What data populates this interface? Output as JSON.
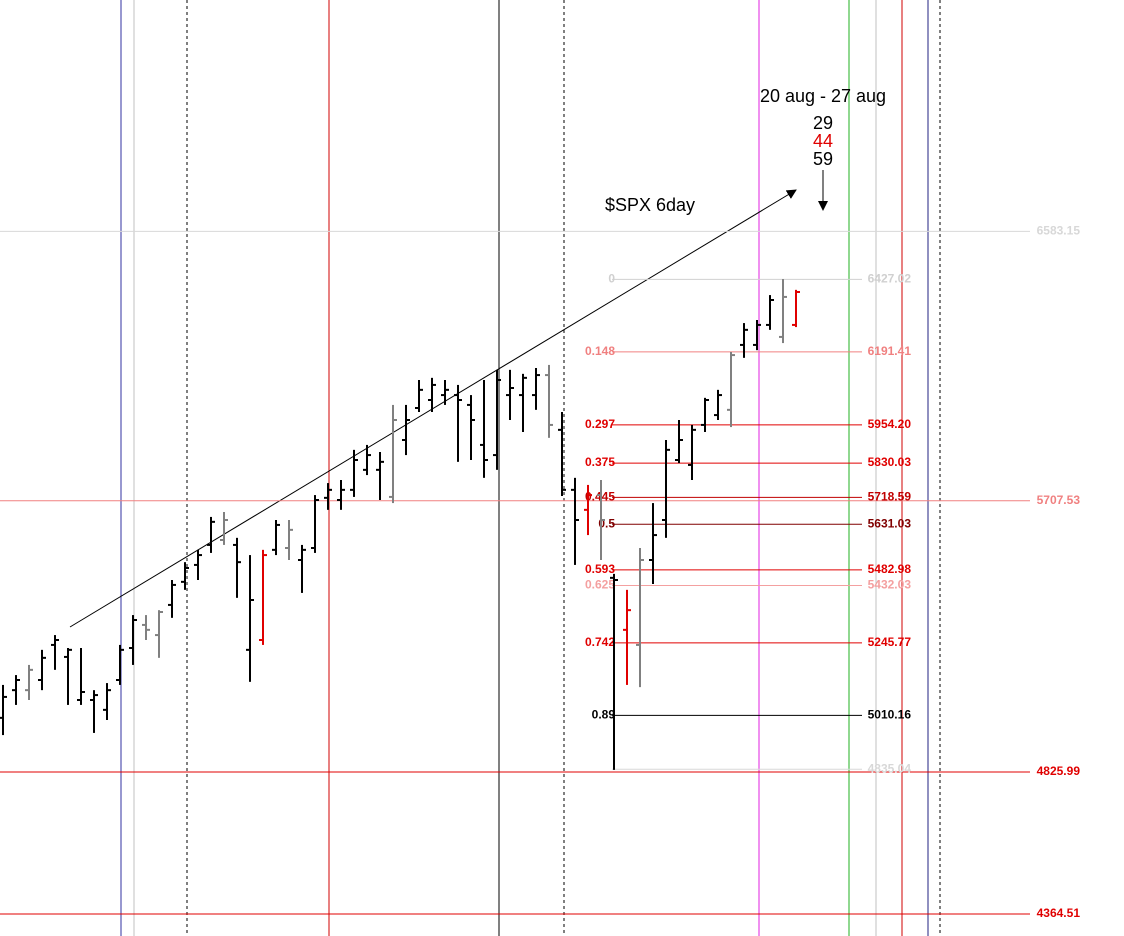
{
  "chart_data": {
    "type": "ohlc",
    "title": "$SPX 6day",
    "annotations": {
      "range": "20 aug - 27 aug",
      "counts": [
        {
          "value": 29,
          "color": "#000000"
        },
        {
          "value": 44,
          "color": "#e00000"
        },
        {
          "value": 59,
          "color": "#000000"
        }
      ]
    },
    "ylim": [
      4293,
      7335
    ],
    "open": [
      5002,
      5092,
      5092,
      5125,
      5239,
      5200,
      5060,
      5060,
      5028,
      5125,
      5229,
      5304,
      5271,
      5369,
      5444,
      5499,
      5564,
      5580,
      5564,
      5223,
      5255,
      5548,
      5554,
      5515,
      5554,
      5717,
      5710,
      5743,
      5808,
      5808,
      5720,
      5905,
      6009,
      6035,
      6051,
      6051,
      6019,
      5889,
      5856,
      6051,
      6051,
      6051,
      6116,
      5938,
      5743,
      5678,
      5726,
      5457,
      5288,
      5239,
      5515,
      5645,
      5840,
      5824,
      5954,
      5986,
      6003,
      6214,
      6214,
      6279,
      6240,
      6279
    ],
    "high": [
      5109,
      5141,
      5174,
      5223,
      5271,
      5229,
      5229,
      5092,
      5115,
      5239,
      5336,
      5336,
      5352,
      5450,
      5508,
      5548,
      5655,
      5671,
      5587,
      5531,
      5548,
      5645,
      5645,
      5564,
      5726,
      5765,
      5775,
      5873,
      5889,
      5866,
      6019,
      6019,
      6100,
      6107,
      6100,
      6084,
      6051,
      6100,
      6133,
      6133,
      6120,
      6139,
      6149,
      5996,
      5782,
      5759,
      5775,
      5470,
      5418,
      5554,
      5700,
      5905,
      5970,
      5954,
      6042,
      6068,
      6191,
      6285,
      6295,
      6376,
      6428,
      6393
    ],
    "low": [
      4946,
      5044,
      5060,
      5092,
      5158,
      5044,
      5044,
      4953,
      4995,
      5109,
      5174,
      5255,
      5197,
      5327,
      5418,
      5450,
      5538,
      5564,
      5392,
      5119,
      5239,
      5531,
      5515,
      5408,
      5538,
      5678,
      5678,
      5720,
      5791,
      5710,
      5700,
      5856,
      5996,
      5996,
      6019,
      5834,
      5840,
      5782,
      5808,
      5970,
      5931,
      6003,
      5912,
      5723,
      5499,
      5596,
      5515,
      4833,
      5109,
      5102,
      5437,
      5587,
      5830,
      5775,
      5931,
      5970,
      5947,
      6172,
      6197,
      6263,
      6220,
      6272
    ],
    "close": [
      5070,
      5125,
      5158,
      5197,
      5255,
      5223,
      5086,
      5076,
      5092,
      5223,
      5320,
      5288,
      5346,
      5434,
      5489,
      5531,
      5639,
      5645,
      5508,
      5385,
      5531,
      5629,
      5613,
      5548,
      5710,
      5743,
      5743,
      5840,
      5856,
      5834,
      5970,
      5970,
      6068,
      6084,
      6068,
      6035,
      5970,
      5840,
      6100,
      6074,
      6107,
      6116,
      5954,
      5743,
      5645,
      5726,
      5645,
      5450,
      5352,
      5515,
      5596,
      5873,
      5905,
      5938,
      6035,
      6051,
      6181,
      6263,
      6279,
      6360,
      6370,
      6386
    ],
    "bar_colors": [
      "#000000",
      "#000000",
      "#808080",
      "#000000",
      "#000000",
      "#000000",
      "#000000",
      "#000000",
      "#000000",
      "#000000",
      "#000000",
      "#808080",
      "#808080",
      "#000000",
      "#000000",
      "#000000",
      "#000000",
      "#808080",
      "#000000",
      "#000000",
      "#e00000",
      "#000000",
      "#808080",
      "#000000",
      "#000000",
      "#000000",
      "#000000",
      "#000000",
      "#000000",
      "#000000",
      "#808080",
      "#000000",
      "#000000",
      "#000000",
      "#000000",
      "#000000",
      "#000000",
      "#000000",
      "#000000",
      "#000000",
      "#000000",
      "#000000",
      "#808080",
      "#000000",
      "#000000",
      "#e00000",
      "#808080",
      "#000000",
      "#e00000",
      "#808080",
      "#000000",
      "#000000",
      "#000000",
      "#000000",
      "#000000",
      "#000000",
      "#808080",
      "#000000",
      "#000000",
      "#000000",
      "#808080",
      "#e00000"
    ],
    "levels": [
      {
        "value": 6583.15,
        "color": "#d8d8d8"
      },
      {
        "value": 5707.53,
        "color": "#f08080"
      },
      {
        "value": 4825.99,
        "color": "#e00000"
      },
      {
        "value": 4364.51,
        "color": "#e00000"
      }
    ],
    "fib": [
      {
        "ratio": 0,
        "price": 6427.02,
        "color": "#d0d0d0"
      },
      {
        "ratio": 0.148,
        "price": 6191.41,
        "color": "#f08080"
      },
      {
        "ratio": 0.297,
        "price": 5954.2,
        "label": "5954.20",
        "color": "#e00000"
      },
      {
        "ratio": 0.375,
        "price": 5830.03,
        "color": "#e00000"
      },
      {
        "ratio": 0.445,
        "price": 5718.59,
        "color": "#c00000"
      },
      {
        "ratio": 0.5,
        "price": 5631.03,
        "color": "#800000"
      },
      {
        "ratio": 0.593,
        "price": 5482.98,
        "color": "#e00000"
      },
      {
        "ratio": 0.625,
        "price": 5432.03,
        "color": "#f4a0a0"
      },
      {
        "ratio": 0.742,
        "price": 5245.77,
        "color": "#e00000"
      },
      {
        "ratio": 0.89,
        "price": 5010.16,
        "color": "#000000"
      },
      {
        "price": 4835.04,
        "color": "#d8d8d8"
      }
    ]
  }
}
